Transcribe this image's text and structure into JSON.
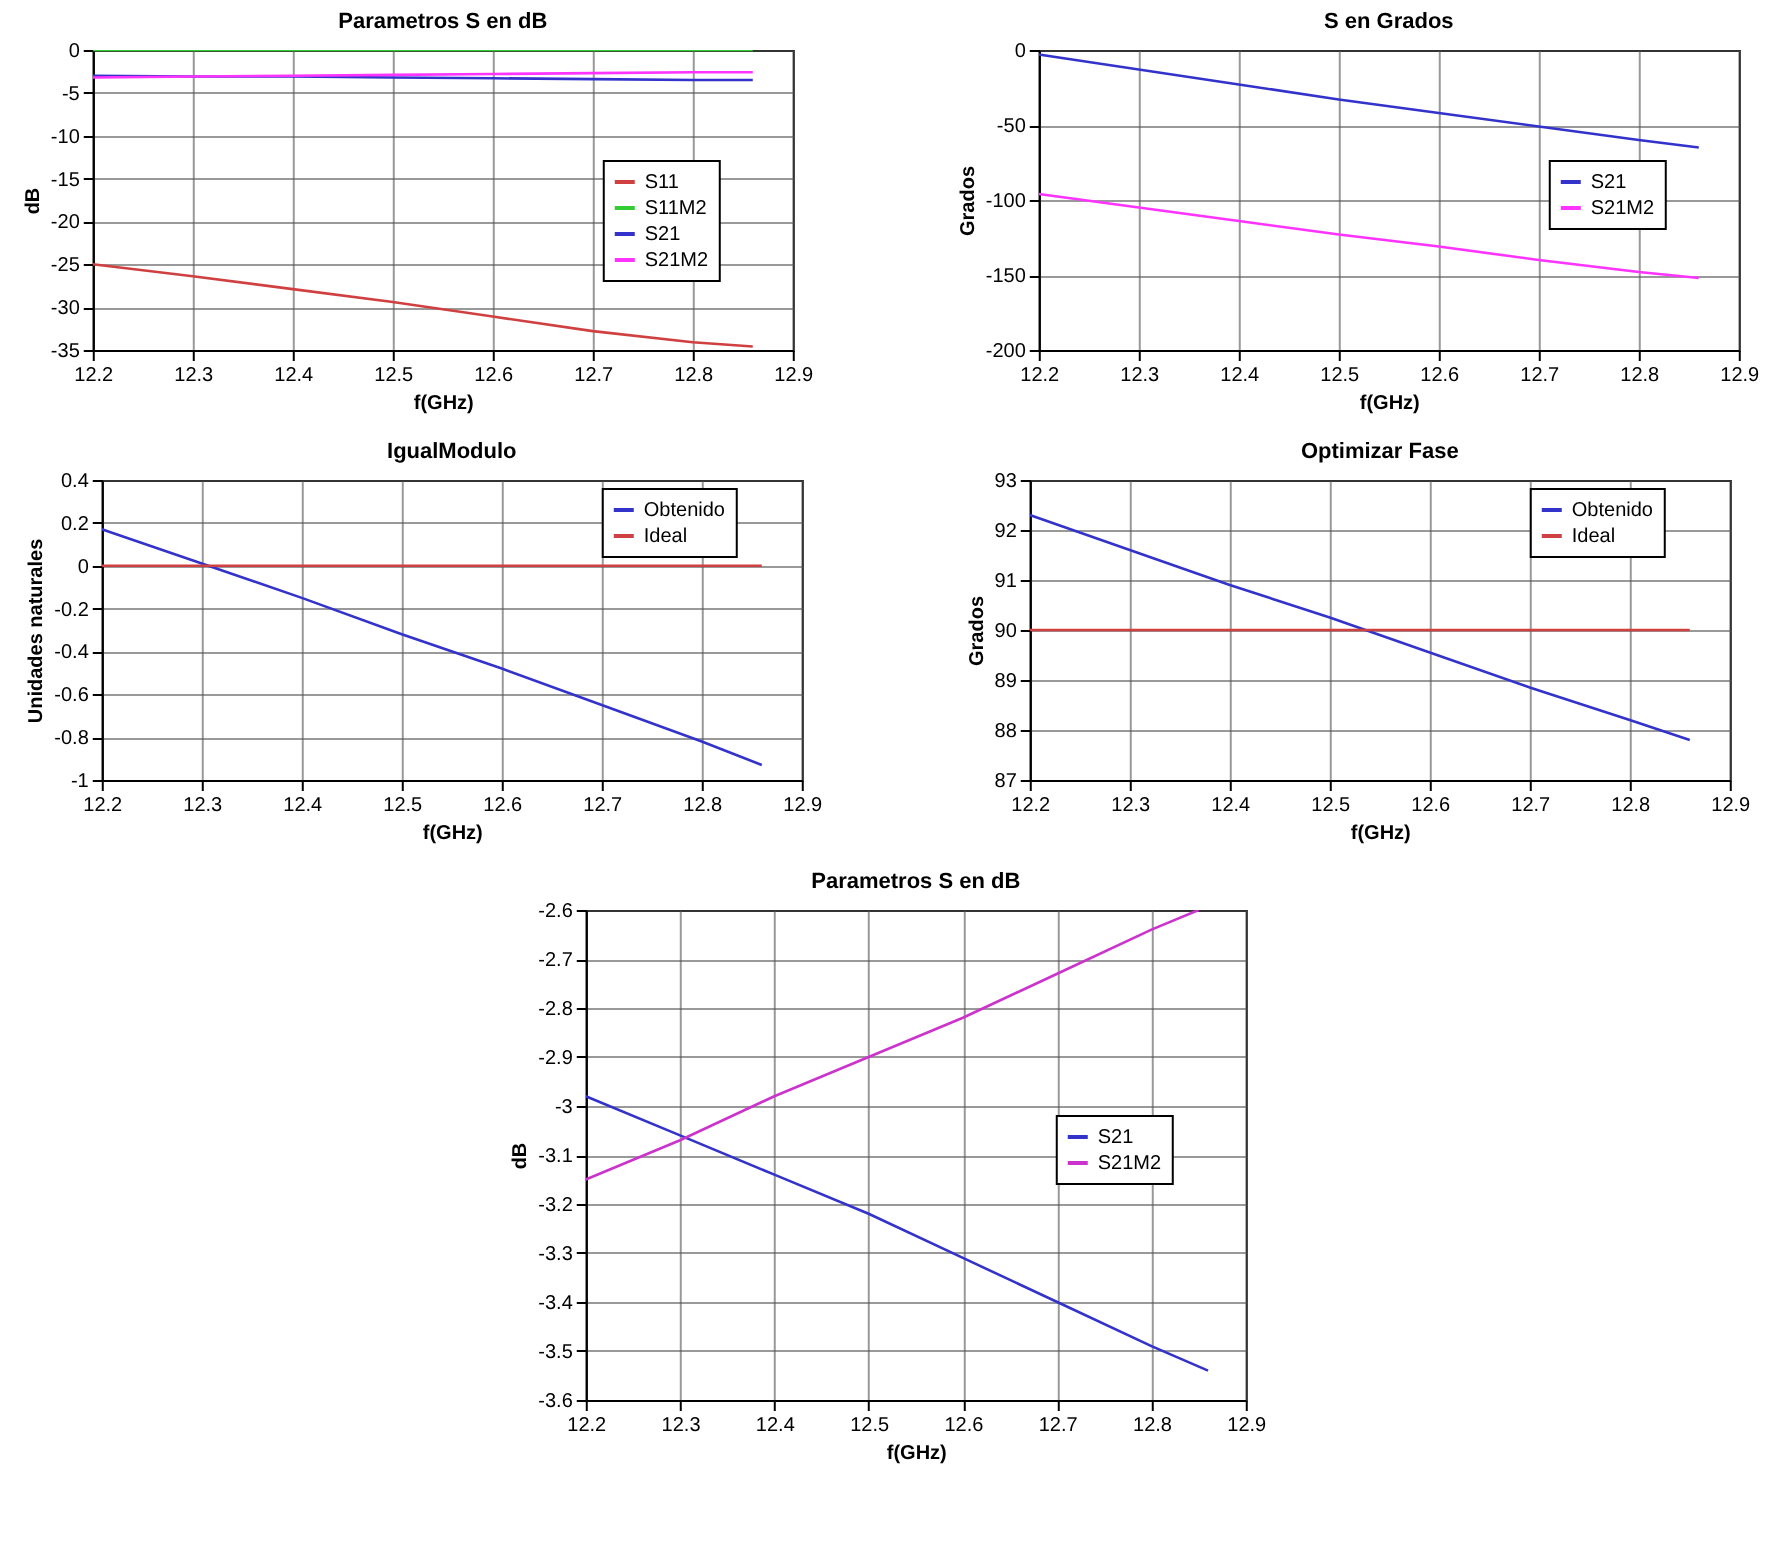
{
  "chart_data": [
    {
      "type": "line",
      "title": "Parametros S en dB",
      "xlabel": "f(GHz)",
      "ylabel": "dB",
      "x": [
        12.2,
        12.3,
        12.4,
        12.5,
        12.6,
        12.7,
        12.8,
        12.86
      ],
      "series": [
        {
          "name": "S11",
          "color": "#d04040",
          "values": [
            -25,
            -26.4,
            -27.9,
            -29.4,
            -31.1,
            -32.8,
            -34.1,
            -34.6
          ]
        },
        {
          "name": "S11M2",
          "color": "#33cc33",
          "values": [
            0,
            0,
            0,
            0,
            0,
            0,
            0,
            0
          ]
        },
        {
          "name": "S21",
          "color": "#3333cc",
          "values": [
            -3,
            -3.1,
            -3.1,
            -3.2,
            -3.3,
            -3.4,
            -3.5,
            -3.5
          ]
        },
        {
          "name": "S21M2",
          "color": "#ff33ff",
          "values": [
            -3.2,
            -3.1,
            -3,
            -2.9,
            -2.8,
            -2.7,
            -2.6,
            -2.6
          ]
        }
      ],
      "xlim": [
        12.2,
        12.9
      ],
      "xticks": [
        12.2,
        12.3,
        12.4,
        12.5,
        12.6,
        12.7,
        12.8,
        12.9
      ],
      "ylim": [
        -35,
        0
      ],
      "yticks": [
        -35,
        -30,
        -25,
        -20,
        -15,
        -10,
        -5,
        0
      ],
      "grid": true,
      "legend": "right"
    },
    {
      "type": "line",
      "title": "S en Grados",
      "xlabel": "f(GHz)",
      "ylabel": "Grados",
      "x": [
        12.2,
        12.3,
        12.4,
        12.5,
        12.6,
        12.7,
        12.8,
        12.86
      ],
      "series": [
        {
          "name": "S21",
          "color": "#3333cc",
          "values": [
            -3,
            -13,
            -23,
            -33,
            -42,
            -51,
            -60,
            -65
          ]
        },
        {
          "name": "S21M2",
          "color": "#ff33ff",
          "values": [
            -96,
            -105,
            -114,
            -123,
            -131,
            -140,
            -148,
            -152
          ]
        }
      ],
      "xlim": [
        12.2,
        12.9
      ],
      "xticks": [
        12.2,
        12.3,
        12.4,
        12.5,
        12.6,
        12.7,
        12.8,
        12.9
      ],
      "ylim": [
        -200,
        0
      ],
      "yticks": [
        -200,
        -150,
        -100,
        -50,
        0
      ],
      "grid": true,
      "legend": "right"
    },
    {
      "type": "line",
      "title": "IgualModulo",
      "xlabel": "f(GHz)",
      "ylabel": "Unidades naturales",
      "x": [
        12.2,
        12.3,
        12.4,
        12.5,
        12.6,
        12.7,
        12.8,
        12.86
      ],
      "series": [
        {
          "name": "Obtenido",
          "color": "#3333cc",
          "values": [
            0.17,
            0.01,
            -0.15,
            -0.32,
            -0.48,
            -0.65,
            -0.82,
            -0.93
          ]
        },
        {
          "name": "Ideal",
          "color": "#d04040",
          "values": [
            0,
            0,
            0,
            0,
            0,
            0,
            0,
            0
          ]
        }
      ],
      "xlim": [
        12.2,
        12.9
      ],
      "xticks": [
        12.2,
        12.3,
        12.4,
        12.5,
        12.6,
        12.7,
        12.8,
        12.9
      ],
      "ylim": [
        -1,
        0.4
      ],
      "yticks": [
        -1,
        -0.8,
        -0.6,
        -0.4,
        -0.2,
        0,
        0.2,
        0.4
      ],
      "grid": true,
      "legend": "top right"
    },
    {
      "type": "line",
      "title": "Optimizar Fase",
      "xlabel": "f(GHz)",
      "ylabel": "Grados",
      "x": [
        12.2,
        12.3,
        12.4,
        12.5,
        12.6,
        12.7,
        12.8,
        12.86
      ],
      "series": [
        {
          "name": "Obtenido",
          "color": "#3333cc",
          "values": [
            92.3,
            91.6,
            90.9,
            90.25,
            89.55,
            88.85,
            88.2,
            87.8
          ]
        },
        {
          "name": "Ideal",
          "color": "#d04040",
          "values": [
            90,
            90,
            90,
            90,
            90,
            90,
            90,
            90
          ]
        }
      ],
      "xlim": [
        12.2,
        12.9
      ],
      "xticks": [
        12.2,
        12.3,
        12.4,
        12.5,
        12.6,
        12.7,
        12.8,
        12.9
      ],
      "ylim": [
        87,
        93
      ],
      "yticks": [
        87,
        88,
        89,
        90,
        91,
        92,
        93
      ],
      "grid": true,
      "legend": "top right"
    },
    {
      "type": "line",
      "title": "Parametros S en dB",
      "xlabel": "f(GHz)",
      "ylabel": "dB",
      "x": [
        12.2,
        12.3,
        12.4,
        12.5,
        12.6,
        12.7,
        12.8,
        12.86
      ],
      "series": [
        {
          "name": "S21",
          "color": "#3333cc",
          "values": [
            -2.98,
            -3.06,
            -3.14,
            -3.22,
            -3.31,
            -3.4,
            -3.49,
            -3.54
          ]
        },
        {
          "name": "S21M2",
          "color": "#cc33cc",
          "x": [
            12.2,
            12.3,
            12.4,
            12.5,
            12.6,
            12.7,
            12.8,
            12.85
          ],
          "values": [
            -3.15,
            -3.07,
            -2.98,
            -2.9,
            -2.82,
            -2.73,
            -2.64,
            -2.6
          ]
        }
      ],
      "xlim": [
        12.2,
        12.9
      ],
      "xticks": [
        12.2,
        12.3,
        12.4,
        12.5,
        12.6,
        12.7,
        12.8,
        12.9
      ],
      "ylim": [
        -3.6,
        -2.6
      ],
      "yticks": [
        -3.6,
        -3.5,
        -3.4,
        -3.3,
        -3.2,
        -3.1,
        -3,
        -2.9,
        -2.8,
        -2.7,
        -2.6
      ],
      "grid": true,
      "legend": "right"
    }
  ]
}
